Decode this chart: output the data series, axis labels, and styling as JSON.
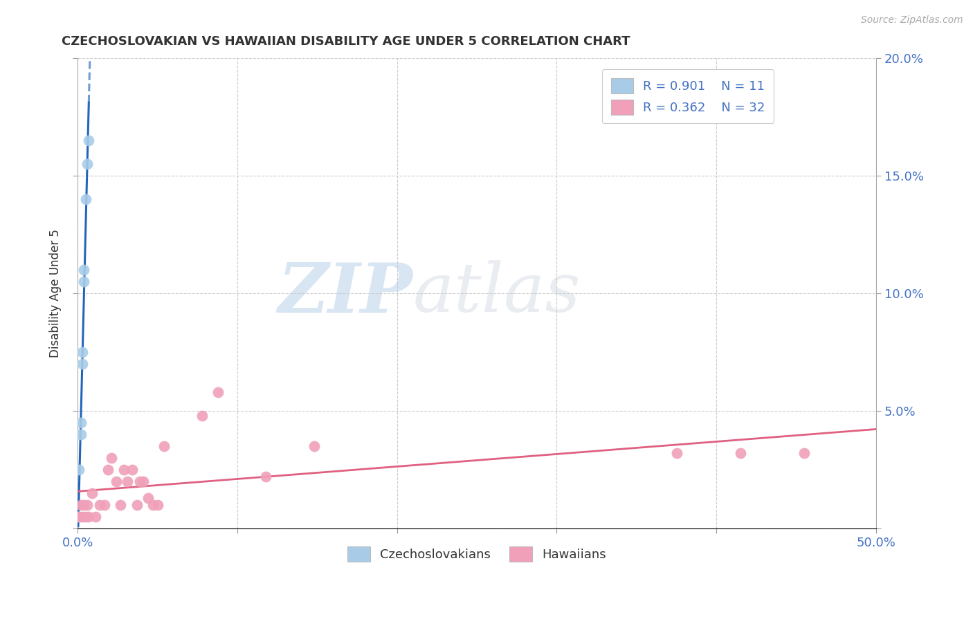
{
  "title": "CZECHOSLOVAKIAN VS HAWAIIAN DISABILITY AGE UNDER 5 CORRELATION CHART",
  "source": "Source: ZipAtlas.com",
  "ylabel": "Disability Age Under 5",
  "xlim": [
    0.0,
    0.5
  ],
  "ylim": [
    0.0,
    0.2
  ],
  "xticks": [
    0.0,
    0.1,
    0.2,
    0.3,
    0.4,
    0.5
  ],
  "xticklabels_show": [
    "0.0%",
    "",
    "",
    "",
    "",
    "50.0%"
  ],
  "yticks": [
    0.0,
    0.05,
    0.1,
    0.15,
    0.2
  ],
  "right_yticklabels": [
    "",
    "5.0%",
    "10.0%",
    "15.0%",
    "20.0%"
  ],
  "legend_r1": "R = 0.901",
  "legend_n1": "N = 11",
  "legend_r2": "R = 0.362",
  "legend_n2": "N = 32",
  "color_czech": "#A8CCE8",
  "color_hawaii": "#F0A0B8",
  "color_czech_line": "#2266BB",
  "color_hawaii_line": "#E06080",
  "background_color": "#FFFFFF",
  "grid_color": "#CCCCCC",
  "title_color": "#333333",
  "label_color": "#333333",
  "tick_color": "#4472C4",
  "czech_x": [
    0.001,
    0.001,
    0.002,
    0.002,
    0.003,
    0.003,
    0.004,
    0.004,
    0.005,
    0.006,
    0.007
  ],
  "czech_y": [
    0.005,
    0.025,
    0.04,
    0.045,
    0.07,
    0.075,
    0.105,
    0.11,
    0.14,
    0.155,
    0.165
  ],
  "hawaii_x": [
    0.001,
    0.002,
    0.003,
    0.004,
    0.005,
    0.006,
    0.007,
    0.009,
    0.011,
    0.014,
    0.017,
    0.019,
    0.021,
    0.024,
    0.027,
    0.029,
    0.031,
    0.034,
    0.037,
    0.039,
    0.041,
    0.044,
    0.047,
    0.05,
    0.054,
    0.078,
    0.088,
    0.118,
    0.148,
    0.375,
    0.415,
    0.455
  ],
  "hawaii_y": [
    0.005,
    0.01,
    0.005,
    0.01,
    0.005,
    0.01,
    0.005,
    0.015,
    0.005,
    0.01,
    0.01,
    0.025,
    0.03,
    0.02,
    0.01,
    0.025,
    0.02,
    0.025,
    0.01,
    0.02,
    0.02,
    0.013,
    0.01,
    0.01,
    0.035,
    0.048,
    0.058,
    0.022,
    0.035,
    0.032,
    0.032,
    0.032
  ]
}
